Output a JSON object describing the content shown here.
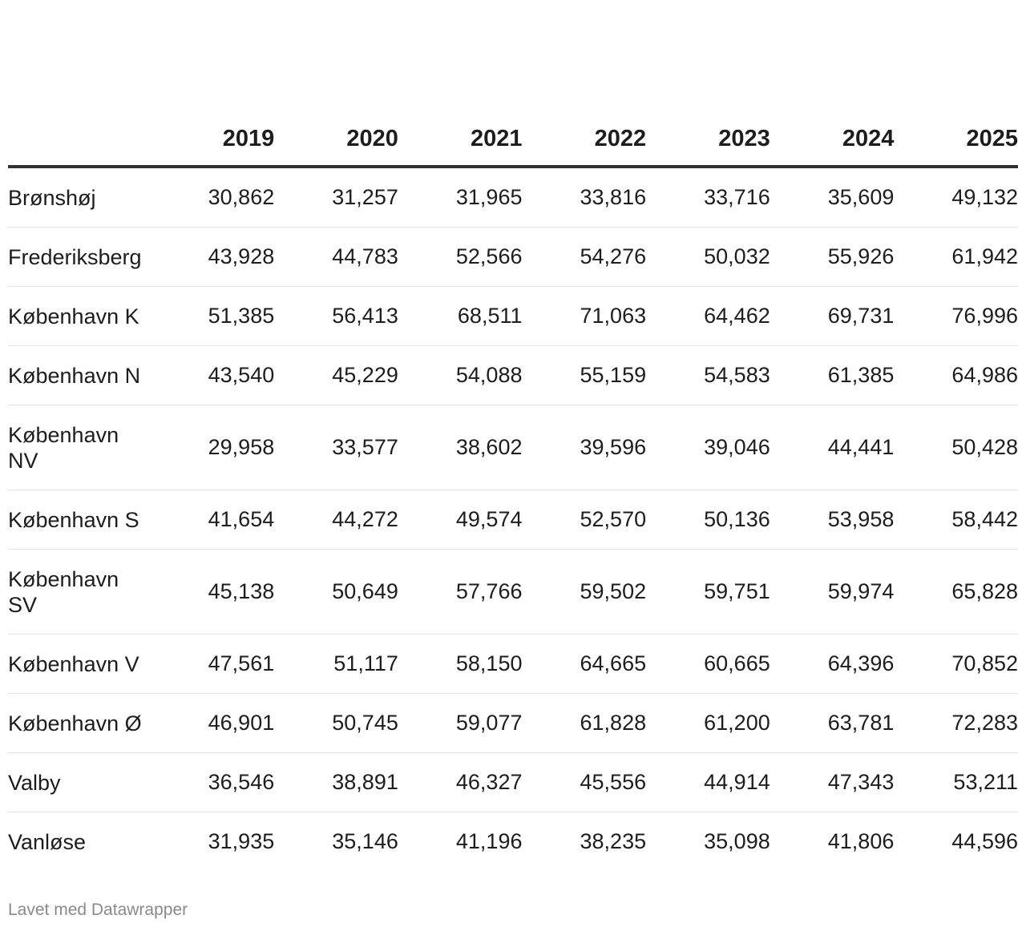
{
  "chart_data": {
    "type": "table",
    "columns": [
      "2019",
      "2020",
      "2021",
      "2022",
      "2023",
      "2024",
      "2025"
    ],
    "rows": [
      {
        "label": "Brønshøj",
        "values": [
          "30,862",
          "31,257",
          "31,965",
          "33,816",
          "33,716",
          "35,609",
          "49,132"
        ]
      },
      {
        "label": "Frederiksberg",
        "values": [
          "43,928",
          "44,783",
          "52,566",
          "54,276",
          "50,032",
          "55,926",
          "61,942"
        ]
      },
      {
        "label": "København K",
        "values": [
          "51,385",
          "56,413",
          "68,511",
          "71,063",
          "64,462",
          "69,731",
          "76,996"
        ]
      },
      {
        "label": "København N",
        "values": [
          "43,540",
          "45,229",
          "54,088",
          "55,159",
          "54,583",
          "61,385",
          "64,986"
        ]
      },
      {
        "label": "København NV",
        "values": [
          "29,958",
          "33,577",
          "38,602",
          "39,596",
          "39,046",
          "44,441",
          "50,428"
        ]
      },
      {
        "label": "København S",
        "values": [
          "41,654",
          "44,272",
          "49,574",
          "52,570",
          "50,136",
          "53,958",
          "58,442"
        ]
      },
      {
        "label": "København SV",
        "values": [
          "45,138",
          "50,649",
          "57,766",
          "59,502",
          "59,751",
          "59,974",
          "65,828"
        ]
      },
      {
        "label": "København V",
        "values": [
          "47,561",
          "51,117",
          "58,150",
          "64,665",
          "60,665",
          "64,396",
          "70,852"
        ]
      },
      {
        "label": "København Ø",
        "values": [
          "46,901",
          "50,745",
          "59,077",
          "61,828",
          "61,200",
          "63,781",
          "72,283"
        ]
      },
      {
        "label": "Valby",
        "values": [
          "36,546",
          "38,891",
          "46,327",
          "45,556",
          "44,914",
          "47,343",
          "53,211"
        ]
      },
      {
        "label": "Vanløse",
        "values": [
          "31,935",
          "35,146",
          "41,196",
          "38,235",
          "35,098",
          "41,806",
          "44,596"
        ]
      }
    ]
  },
  "footer": {
    "credit": "Lavet med Datawrapper"
  },
  "colors": {
    "text": "#1d1d1d",
    "header_rule": "#333333",
    "row_divider": "#e3e3e3",
    "footer_text": "#8a8a8a"
  }
}
